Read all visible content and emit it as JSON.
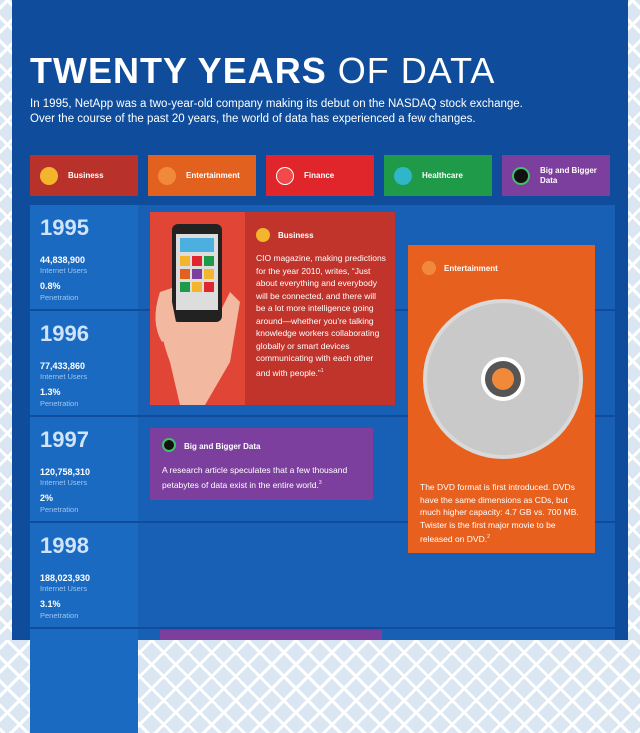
{
  "header": {
    "title_bold": "TWENTY YEARS",
    "title_light": "OF DATA",
    "subtitle_lines": [
      "In 1995, NetApp was a two-year-old company making its debut on the NASDAQ stock exchange.",
      "Over the course of the past 20 years, the world of data has experienced a few changes."
    ]
  },
  "categories": [
    {
      "label": "Business"
    },
    {
      "label": "Entertainment"
    },
    {
      "label": "Finance"
    },
    {
      "label": "Healthcare"
    },
    {
      "label": "Big and Bigger Data"
    }
  ],
  "timeline": [
    {
      "year": "1995",
      "users": "44,838,900",
      "users_label": "Internet Users",
      "penetration": "0.8%",
      "penetration_label": "Penetration"
    },
    {
      "year": "1996",
      "users": "77,433,860",
      "users_label": "Internet Users",
      "penetration": "1.3%",
      "penetration_label": "Penetration"
    },
    {
      "year": "1997",
      "users": "120,758,310",
      "users_label": "Internet Users",
      "penetration": "2%",
      "penetration_label": "Penetration"
    },
    {
      "year": "1998",
      "users": "188,023,930",
      "users_label": "Internet Users",
      "penetration": "3.1%",
      "penetration_label": "Penetration"
    }
  ],
  "cards": {
    "business": {
      "category": "Business",
      "text": "CIO magazine, making predictions for the year 2010, writes, “Just about everything and everybody will be connected, and there will be a lot more intelligence going around—whether you’re talking knowledge workers collaborating globally or  smart devices communicating with each other and with people.”",
      "note": "1"
    },
    "entertainment": {
      "category": "Entertainment",
      "text": "The DVD format is first introduced. DVDs have the same dimensions as CDs, but much higher capacity: 4.7 GB vs. 700 MB. Twister is the first major movie to be released on DVD.",
      "note": "2"
    },
    "big_data": {
      "category": "Big and Bigger Data",
      "text": "A research article speculates that a few thousand petabytes of data exist in the entire world.",
      "note": "3"
    }
  }
}
